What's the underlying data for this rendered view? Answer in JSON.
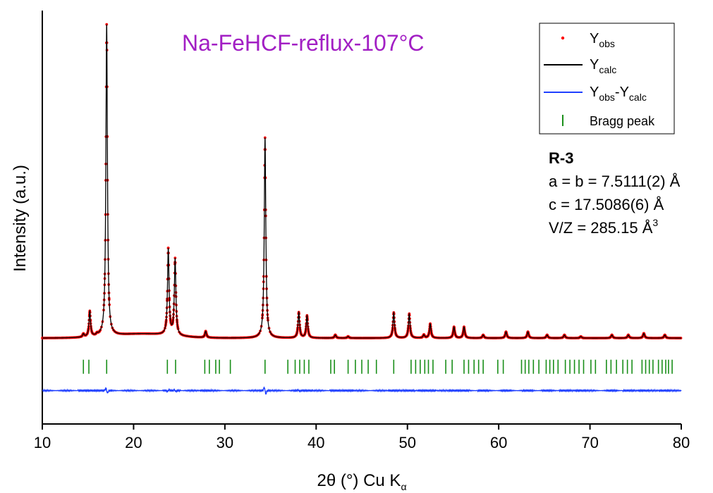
{
  "chart_data": {
    "type": "line",
    "title": "Na-FeHCF-reflux-107°C",
    "xlabel": {
      "main": "2θ (°) Cu K",
      "sub": "α"
    },
    "ylabel": "Intensity (a.u.)",
    "xlim": [
      10,
      80
    ],
    "ylim": [
      -0.25,
      1.05
    ],
    "x_ticks": [
      "10",
      "20",
      "30",
      "40",
      "50",
      "60",
      "70",
      "80"
    ],
    "y_ticks_labeled": false,
    "legend_position": "top-right",
    "legend": [
      {
        "main": "Y",
        "sub": "obs",
        "marker": "dot",
        "color": "#ff0000"
      },
      {
        "main": "Y",
        "sub": "calc",
        "marker": "line",
        "color": "#000000"
      },
      {
        "main": "Y",
        "sub": "obs",
        "main2": "-Y",
        "sub2": "calc",
        "marker": "line",
        "color": "#1f3fff"
      },
      {
        "main": "Bragg peak",
        "marker": "tick",
        "color": "#1a8f1a"
      }
    ],
    "colors": {
      "obs": "#ff0000",
      "calc": "#000000",
      "diff": "#1f3fff",
      "bragg": "#1a8f1a",
      "title": "#a21fc4"
    },
    "background": 0.02,
    "diff_offset": -0.145,
    "bragg_offset": -0.07,
    "peaks": [
      {
        "x": 14.5,
        "h": 0.01
      },
      {
        "x": 15.2,
        "h": 0.08
      },
      {
        "x": 16.0,
        "h": 0.005
      },
      {
        "x": 17.05,
        "h": 0.98
      },
      {
        "x": 23.8,
        "h": 0.27
      },
      {
        "x": 24.55,
        "h": 0.24
      },
      {
        "x": 27.9,
        "h": 0.02
      },
      {
        "x": 34.4,
        "h": 0.63
      },
      {
        "x": 38.1,
        "h": 0.08
      },
      {
        "x": 39.0,
        "h": 0.07
      },
      {
        "x": 42.1,
        "h": 0.01
      },
      {
        "x": 43.5,
        "h": 0.005
      },
      {
        "x": 48.5,
        "h": 0.08
      },
      {
        "x": 50.2,
        "h": 0.076
      },
      {
        "x": 51.8,
        "h": 0.01
      },
      {
        "x": 52.5,
        "h": 0.045
      },
      {
        "x": 55.1,
        "h": 0.035
      },
      {
        "x": 56.2,
        "h": 0.035
      },
      {
        "x": 58.3,
        "h": 0.01
      },
      {
        "x": 60.8,
        "h": 0.02
      },
      {
        "x": 63.2,
        "h": 0.02
      },
      {
        "x": 65.3,
        "h": 0.01
      },
      {
        "x": 67.2,
        "h": 0.01
      },
      {
        "x": 69.0,
        "h": 0.005
      },
      {
        "x": 72.4,
        "h": 0.01
      },
      {
        "x": 74.2,
        "h": 0.01
      },
      {
        "x": 75.9,
        "h": 0.015
      },
      {
        "x": 78.2,
        "h": 0.01
      }
    ],
    "diff_features": [
      {
        "x": 17.05,
        "a": -0.016
      },
      {
        "x": 23.8,
        "a": 0.006
      },
      {
        "x": 24.55,
        "a": -0.006
      },
      {
        "x": 34.4,
        "a": -0.022
      },
      {
        "x": 38.1,
        "a": -0.004
      }
    ],
    "bragg_positions": [
      14.5,
      15.1,
      17.05,
      23.7,
      24.6,
      27.8,
      28.3,
      29.0,
      29.4,
      30.6,
      34.4,
      36.9,
      37.7,
      38.2,
      38.7,
      39.2,
      41.6,
      42.0,
      43.5,
      44.3,
      45.0,
      45.7,
      46.6,
      48.5,
      50.4,
      50.9,
      51.4,
      51.9,
      52.3,
      52.8,
      54.2,
      54.9,
      56.2,
      56.7,
      57.3,
      57.8,
      58.3,
      59.9,
      60.5,
      62.5,
      62.9,
      63.3,
      63.8,
      64.4,
      65.2,
      65.6,
      66.0,
      66.5,
      67.3,
      67.8,
      68.3,
      68.8,
      69.3,
      70.1,
      70.6,
      71.8,
      72.3,
      72.9,
      73.6,
      74.1,
      74.6,
      75.7,
      76.1,
      76.5,
      76.9,
      77.5,
      77.9,
      78.3,
      78.6,
      79.0
    ]
  },
  "cell_info": {
    "space_group": "R-3",
    "a_b": "a = b = 7.5111(2) Å",
    "c": "c = 17.5086(6) Å",
    "vz_main": "V/Z = 285.15 Å",
    "vz_sup": "3"
  }
}
